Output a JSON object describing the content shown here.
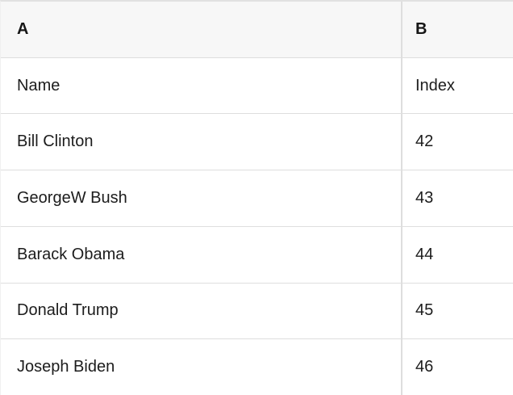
{
  "table": {
    "header": {
      "col_a": "A",
      "col_b": "B"
    },
    "rows": [
      {
        "a": "Name",
        "b": "Index"
      },
      {
        "a": "Bill Clinton",
        "b": "42"
      },
      {
        "a": "GeorgeW Bush",
        "b": "43"
      },
      {
        "a": "Barack Obama",
        "b": "44"
      },
      {
        "a": "Donald Trump",
        "b": "45"
      },
      {
        "a": "Joseph Biden",
        "b": "46"
      }
    ],
    "colors": {
      "header_bg": "#f7f7f7",
      "border": "#dedede",
      "text": "#1c1c1c"
    }
  }
}
